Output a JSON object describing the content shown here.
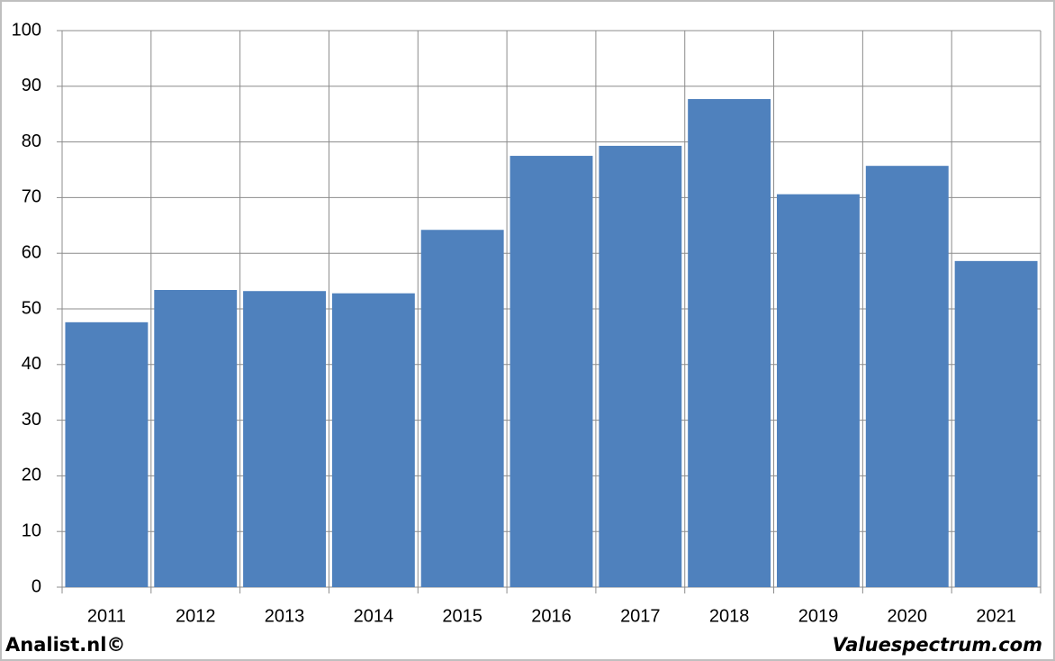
{
  "chart_data": {
    "type": "bar",
    "categories": [
      "2011",
      "2012",
      "2013",
      "2014",
      "2015",
      "2016",
      "2017",
      "2018",
      "2019",
      "2020",
      "2021"
    ],
    "values": [
      47.6,
      53.4,
      53.2,
      52.8,
      64.2,
      77.5,
      79.3,
      87.7,
      70.6,
      75.7,
      58.6
    ],
    "color": "#4f81bd",
    "ylim": [
      0,
      100
    ],
    "yticks": [
      0,
      10,
      20,
      30,
      40,
      50,
      60,
      70,
      80,
      90,
      100
    ],
    "grid": true,
    "annotations": [
      "Analist.nl©",
      "Valuespectrum.com"
    ]
  }
}
